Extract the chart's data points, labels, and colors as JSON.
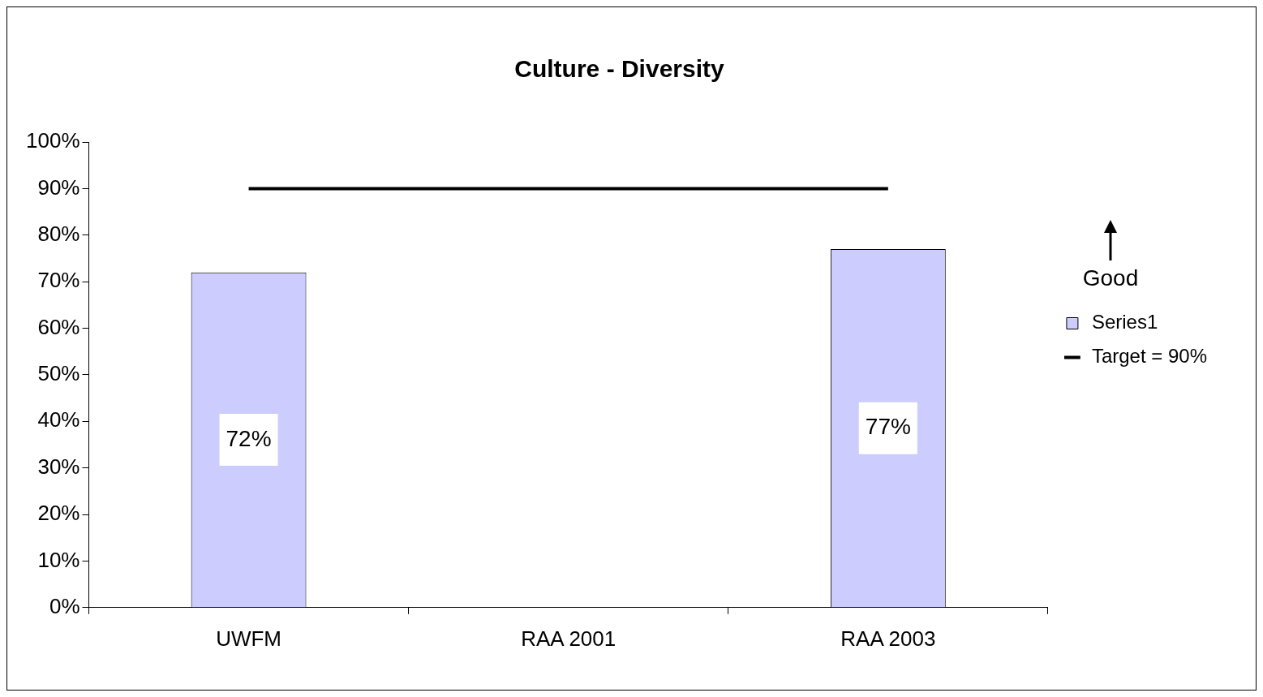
{
  "chart_data": {
    "type": "bar",
    "title": "Culture - Diversity",
    "categories": [
      "UWFM",
      "RAA 2001",
      "RAA 2003"
    ],
    "series": [
      {
        "name": "Series1",
        "color": "#ccccff",
        "values": [
          72,
          null,
          77
        ],
        "value_labels": [
          "72%",
          null,
          "77%"
        ]
      },
      {
        "name": "Target = 90%",
        "type": "line",
        "color": "#000000",
        "values": [
          90,
          90,
          90
        ]
      }
    ],
    "ylim": [
      0,
      100
    ],
    "yticks": [
      {
        "value": 0,
        "label": "0%"
      },
      {
        "value": 10,
        "label": "10%"
      },
      {
        "value": 20,
        "label": "20%"
      },
      {
        "value": 30,
        "label": "30%"
      },
      {
        "value": 40,
        "label": "40%"
      },
      {
        "value": 50,
        "label": "50%"
      },
      {
        "value": 60,
        "label": "60%"
      },
      {
        "value": 70,
        "label": "70%"
      },
      {
        "value": 80,
        "label": "80%"
      },
      {
        "value": 90,
        "label": "90%"
      },
      {
        "value": 100,
        "label": "100%"
      }
    ],
    "grid": false,
    "legend": "right",
    "marker": "none",
    "annotations": [
      "Good"
    ]
  }
}
